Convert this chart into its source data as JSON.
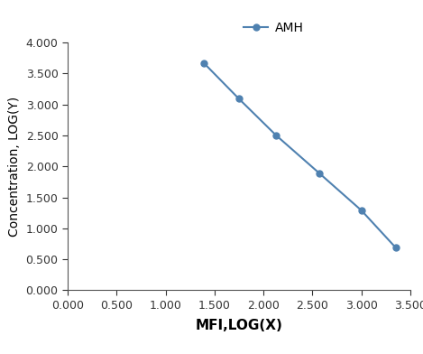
{
  "x": [
    1.39,
    1.75,
    2.13,
    2.57,
    3.0,
    3.35
  ],
  "y": [
    3.67,
    3.09,
    2.5,
    1.89,
    1.29,
    0.69
  ],
  "line_color": "#4f81b0",
  "marker_color": "#4f81b0",
  "marker_size": 5,
  "line_width": 1.5,
  "legend_label": "AMH",
  "xlabel": "MFI,LOG(X)",
  "ylabel": "Concentration, LOG(Y)",
  "xlim": [
    0.0,
    3.5
  ],
  "ylim": [
    0.0,
    4.0
  ],
  "xticks": [
    0.0,
    0.5,
    1.0,
    1.5,
    2.0,
    2.5,
    3.0,
    3.5
  ],
  "yticks": [
    0.0,
    0.5,
    1.0,
    1.5,
    2.0,
    2.5,
    3.0,
    3.5,
    4.0
  ],
  "xlabel_fontsize": 11,
  "ylabel_fontsize": 10,
  "tick_fontsize": 9,
  "legend_fontsize": 10,
  "background_color": "#ffffff"
}
